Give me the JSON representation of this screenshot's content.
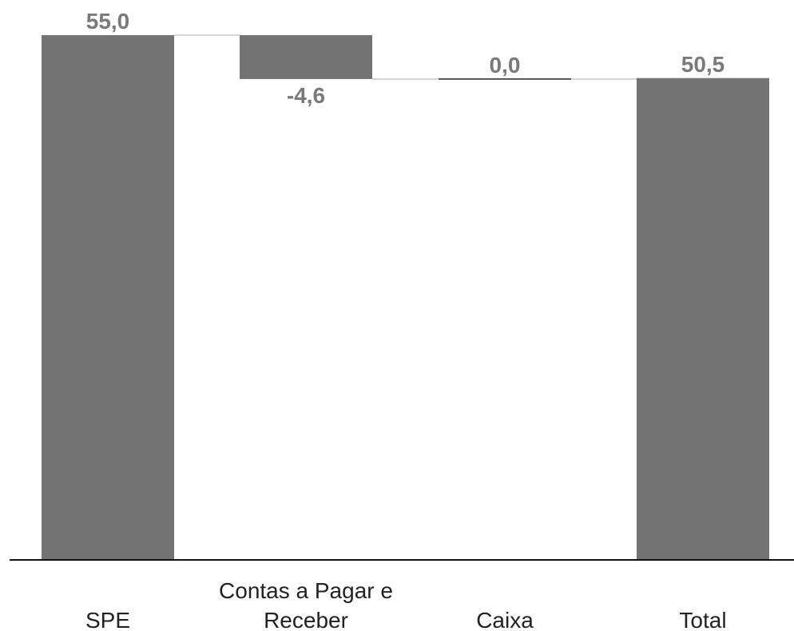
{
  "chart_data": {
    "type": "bar",
    "subtype": "waterfall",
    "categories": [
      "SPE",
      "Contas a Pagar e Receber",
      "Caixa",
      "Total"
    ],
    "category_label_lines": [
      [
        "SPE"
      ],
      [
        "Contas a Pagar e",
        "Receber"
      ],
      [
        "Caixa"
      ],
      [
        "Total"
      ]
    ],
    "values": [
      55.0,
      -4.6,
      0.0,
      50.5
    ],
    "value_labels": [
      "55,0",
      "-4,6",
      "0,0",
      "50,5"
    ],
    "bar_kinds": [
      "total",
      "delta",
      "delta",
      "total"
    ],
    "title": "",
    "xlabel": "",
    "ylabel": "",
    "ylim": [
      0,
      55
    ],
    "grid": false,
    "legend": "none",
    "colors": {
      "bar": "#737373",
      "connector": "#d6d6d6",
      "value_label": "#7a7a7a",
      "category_label": "#222222",
      "axis": "#111111"
    }
  }
}
